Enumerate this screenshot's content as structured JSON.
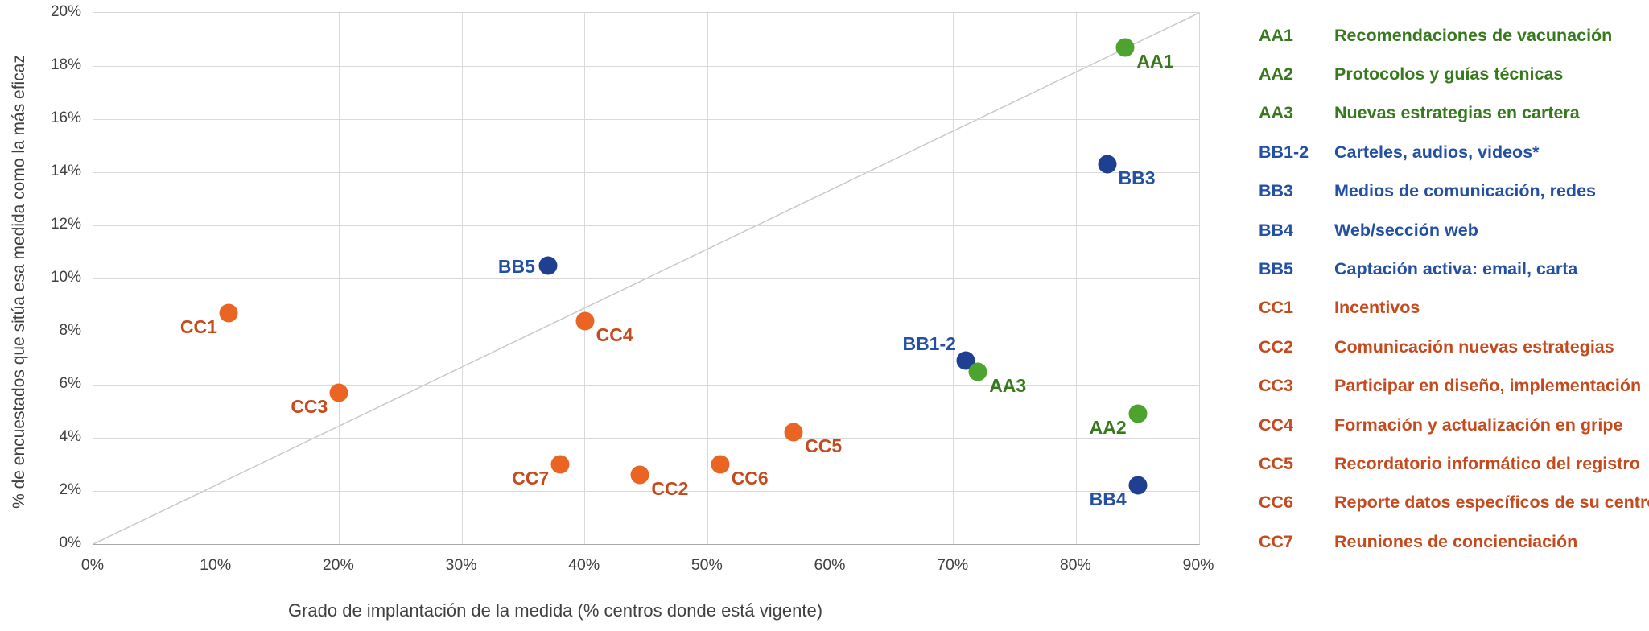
{
  "chart_data": {
    "type": "scatter",
    "title": "",
    "xlabel": "Grado de implantación de la medida (% centros donde está vigente)",
    "ylabel": "% de encuestados que sitúa esa medida como la más eficaz",
    "xlim": [
      0,
      90
    ],
    "xtick_step": 10,
    "xtick_format": "percent",
    "ylim": [
      0,
      20
    ],
    "ytick_step": 2,
    "ytick_format": "percent",
    "grid": true,
    "diagonal_reference_line": {
      "from": [
        0,
        0
      ],
      "to": [
        90,
        20
      ],
      "color": "#c9c9c9"
    },
    "series": [
      {
        "name": "AA",
        "color": "#4ca32e",
        "label_color": "#377a1d",
        "points": [
          {
            "label": "AA1",
            "x": 84,
            "y": 18.7,
            "label_pos": "right-down"
          },
          {
            "label": "AA2",
            "x": 85,
            "y": 4.9,
            "label_pos": "left-down"
          },
          {
            "label": "AA3",
            "x": 72,
            "y": 6.5,
            "label_pos": "right-down",
            "z": 3
          }
        ]
      },
      {
        "name": "BB",
        "color": "#1f4090",
        "label_color": "#2450a4",
        "points": [
          {
            "label": "BB1-2",
            "x": 71,
            "y": 6.9,
            "label_pos": "left-up"
          },
          {
            "label": "BB3",
            "x": 82.5,
            "y": 14.3,
            "label_pos": "right-down"
          },
          {
            "label": "BB4",
            "x": 85,
            "y": 2.2,
            "label_pos": "left-down"
          },
          {
            "label": "BB5",
            "x": 37,
            "y": 10.5,
            "label_pos": "left"
          }
        ]
      },
      {
        "name": "CC",
        "color": "#ea6524",
        "label_color": "#c54a1d",
        "points": [
          {
            "label": "CC1",
            "x": 11,
            "y": 8.7,
            "label_pos": "left-down"
          },
          {
            "label": "CC2",
            "x": 44.5,
            "y": 2.6,
            "label_pos": "right-down"
          },
          {
            "label": "CC3",
            "x": 20,
            "y": 5.7,
            "label_pos": "left-down"
          },
          {
            "label": "CC4",
            "x": 40,
            "y": 8.4,
            "label_pos": "right-down"
          },
          {
            "label": "CC5",
            "x": 57,
            "y": 4.2,
            "label_pos": "right-down"
          },
          {
            "label": "CC6",
            "x": 51,
            "y": 3.0,
            "label_pos": "right-down"
          },
          {
            "label": "CC7",
            "x": 38,
            "y": 3.0,
            "label_pos": "left-down"
          }
        ]
      }
    ]
  },
  "legend": {
    "items": [
      {
        "code": "AA1",
        "label": "Recomendaciones de vacunación",
        "group": "AA"
      },
      {
        "code": "AA2",
        "label": "Protocolos y guías técnicas",
        "group": "AA"
      },
      {
        "code": "AA3",
        "label": "Nuevas estrategias en cartera",
        "group": "AA"
      },
      {
        "code": "BB1-2",
        "label": "Carteles, audios, videos*",
        "group": "BB"
      },
      {
        "code": "BB3",
        "label": "Medios de comunicación, redes",
        "group": "BB"
      },
      {
        "code": "BB4",
        "label": "Web/sección web",
        "group": "BB"
      },
      {
        "code": "BB5",
        "label": "Captación activa: email, carta",
        "group": "BB"
      },
      {
        "code": "CC1",
        "label": "Incentivos",
        "group": "CC"
      },
      {
        "code": "CC2",
        "label": "Comunicación nuevas estrategias",
        "group": "CC"
      },
      {
        "code": "CC3",
        "label": "Participar en diseño, implementación",
        "group": "CC"
      },
      {
        "code": "CC4",
        "label": "Formación y actualización en gripe",
        "group": "CC"
      },
      {
        "code": "CC5",
        "label": "Recordatorio informático del registro",
        "group": "CC"
      },
      {
        "code": "CC6",
        "label": "Reporte datos específicos de su centro",
        "group": "CC"
      },
      {
        "code": "CC7",
        "label": "Reuniones de concienciación",
        "group": "CC"
      }
    ]
  }
}
